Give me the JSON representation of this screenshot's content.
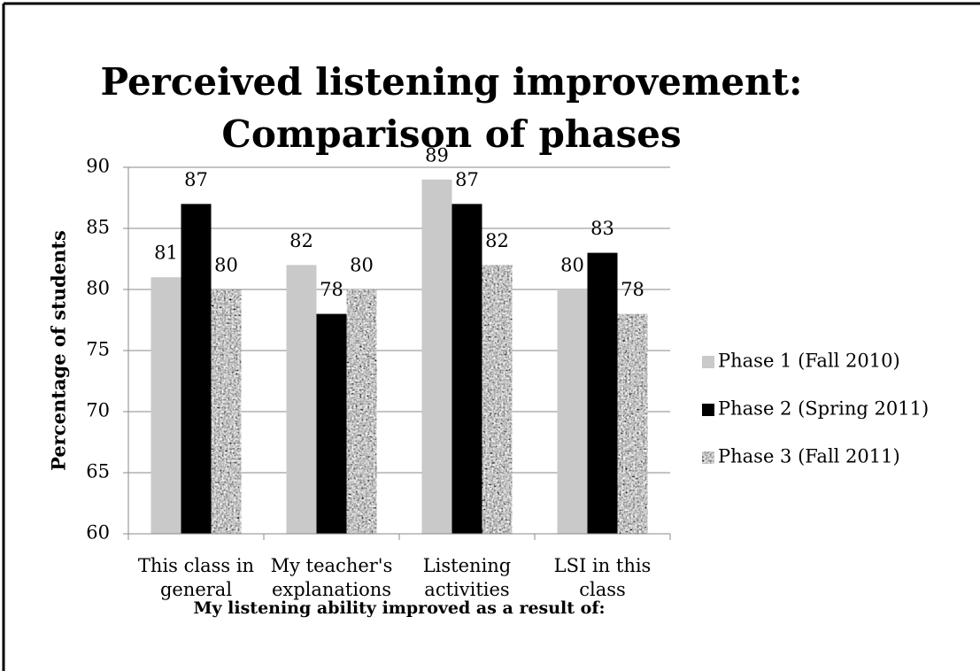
{
  "chart_data": {
    "type": "bar",
    "title": "Perceived listening improvement: Comparison of phases",
    "x_label": "My listening ability improved as a result of:",
    "y_label": "Percentage of students",
    "categories": [
      "This class in general",
      "My teacher's explanations",
      "Listening activities",
      "LSI in this class"
    ],
    "series": [
      {
        "name": "Phase 1 (Fall 2010)",
        "color": "#c9c9c9",
        "values": [
          81,
          82,
          89,
          80
        ]
      },
      {
        "name": "Phase 2 (Spring 2011)",
        "color": "#000000",
        "values": [
          87,
          78,
          87,
          83
        ]
      },
      {
        "name": "Phase 3 (Fall 2011)",
        "color": "#8c8c8c",
        "pattern": "speckle",
        "values": [
          80,
          80,
          82,
          78
        ]
      }
    ],
    "ylim": [
      60,
      90
    ],
    "yticks": [
      60,
      65,
      70,
      75,
      80,
      85,
      90
    ],
    "grid": true,
    "legend": "right"
  }
}
